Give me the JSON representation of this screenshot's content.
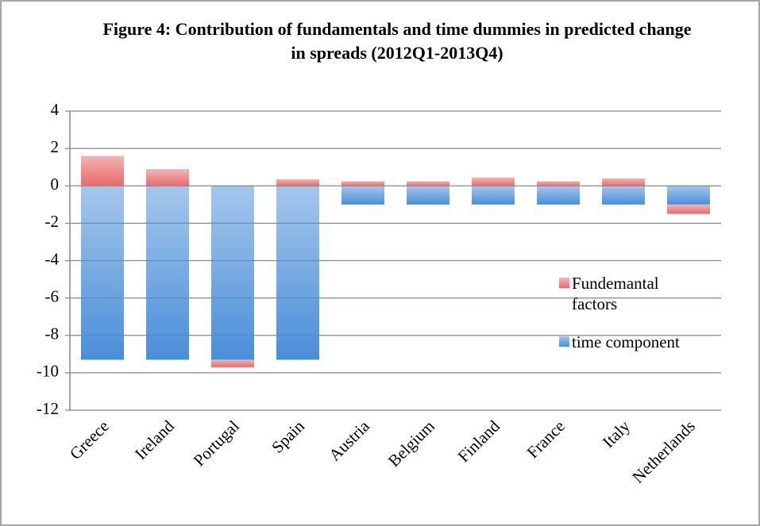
{
  "chart_data": {
    "type": "stacked-bar",
    "title": "Figure 4: Contribution of fundamentals and time dummies in predicted change in spreads (2012Q1-2013Q4)",
    "categories": [
      "Greece",
      "Ireland",
      "Portugal",
      "Spain",
      "Austria",
      "Belgium",
      "Finland",
      "France",
      "Italy",
      "Netherlands"
    ],
    "series": [
      {
        "name": "Fundemantal factors",
        "color": "#e86a6a",
        "values": [
          1.6,
          0.9,
          -0.4,
          0.35,
          0.25,
          0.25,
          0.45,
          0.25,
          0.4,
          -0.5
        ]
      },
      {
        "name": "time component",
        "color": "#4a8ed8",
        "values": [
          -9.3,
          -9.3,
          -9.3,
          -9.3,
          -1.0,
          -1.0,
          -1.0,
          -1.0,
          -1.0,
          -1.0
        ]
      }
    ],
    "ylim": [
      -12,
      4
    ],
    "yticks": [
      -12,
      -10,
      -8,
      -6,
      -4,
      -2,
      0,
      2,
      4
    ],
    "grid": true,
    "legend": "right"
  }
}
